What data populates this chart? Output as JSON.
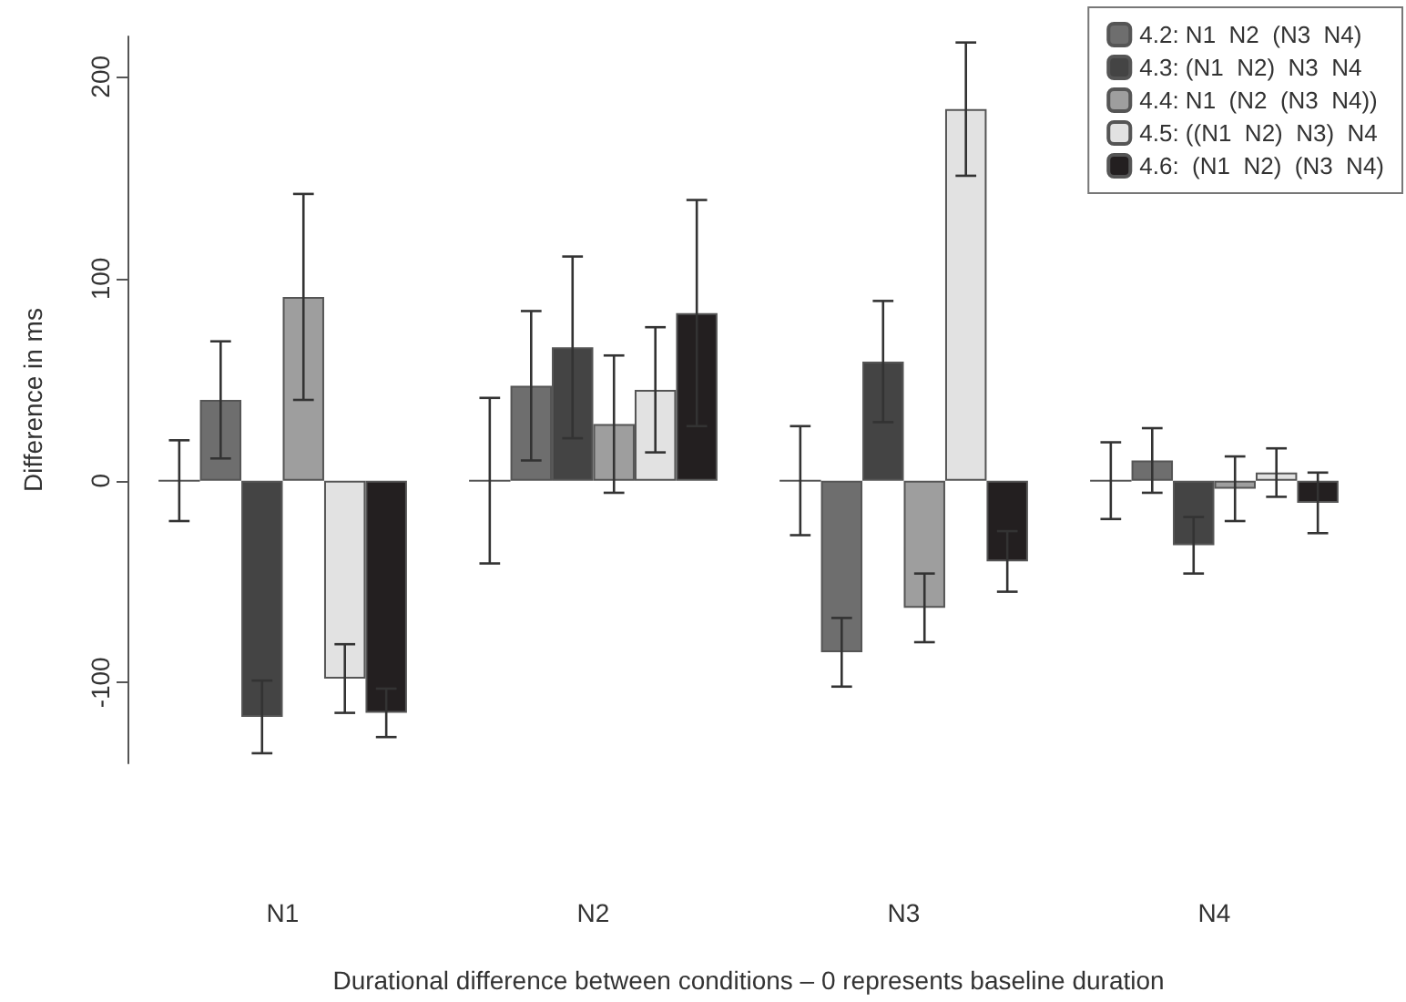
{
  "chart_data": {
    "type": "bar",
    "xlabel": "Durational difference between conditions – 0 represents baseline duration",
    "ylabel": "Difference in ms",
    "categories": [
      "N1",
      "N2",
      "N3",
      "N4"
    ],
    "series": [
      {
        "color": "#555555",
        "values": [
          0,
          0,
          0,
          0
        ],
        "errors": [
          20,
          41,
          27,
          19
        ]
      },
      {
        "name": "4.2: N1  N2  (N3  N4)",
        "color": "#6e6e6e",
        "values": [
          40,
          47,
          -85,
          10
        ],
        "errors": [
          29,
          37,
          17,
          16
        ]
      },
      {
        "name": "4.3: (N1  N2)  N3  N4",
        "color": "#444444",
        "values": [
          -117,
          66,
          59,
          -32
        ],
        "errors": [
          18,
          45,
          30,
          14
        ]
      },
      {
        "name": "4.4: N1  (N2  (N3  N4))",
        "color": "#9e9e9e",
        "values": [
          91,
          28,
          -63,
          -4
        ],
        "errors": [
          51,
          34,
          17,
          16
        ]
      },
      {
        "name": "4.5: ((N1  N2)  N3)  N4",
        "color": "#e2e2e2",
        "values": [
          -98,
          45,
          184,
          4
        ],
        "errors": [
          17,
          31,
          33,
          12
        ]
      },
      {
        "name": "4.6:  (N1  N2)  (N3  N4)",
        "color": "#231f20",
        "values": [
          -115,
          83,
          -40,
          -11
        ],
        "errors": [
          12,
          56,
          15,
          15
        ]
      }
    ],
    "ylim": [
      -140,
      220
    ],
    "yticks": [
      -100,
      0,
      100,
      200
    ],
    "grid": false,
    "legend": "top right"
  }
}
